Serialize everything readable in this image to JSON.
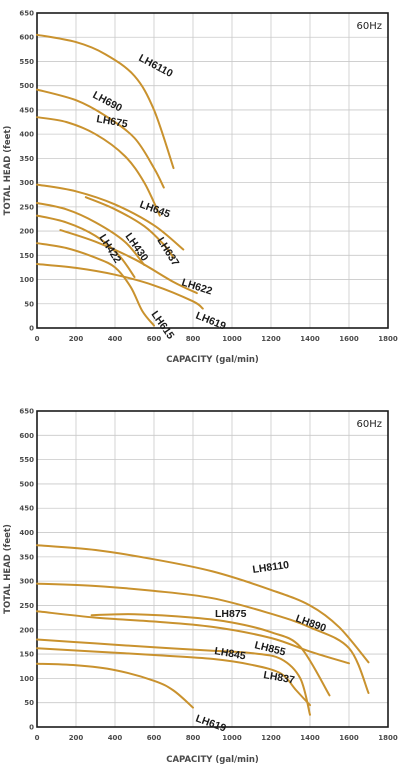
{
  "chart_data": [
    {
      "type": "line",
      "frequency_label": "60Hz",
      "xlabel": "CAPACITY (gal/min)",
      "ylabel": "TOTAL HEAD (feet)",
      "xlim": [
        0,
        1800
      ],
      "ylim": [
        0,
        650
      ],
      "xticks": [
        "0",
        "200",
        "400",
        "600",
        "800",
        "1000",
        "1200",
        "1400",
        "1600",
        "1800"
      ],
      "yticks": [
        "0",
        "50",
        "100",
        "150",
        "200",
        "250",
        "300",
        "350",
        "400",
        "450",
        "500",
        "550",
        "600",
        "650"
      ],
      "grid": true,
      "line_color": "#c9922e",
      "series": [
        {
          "name": "LH6110",
          "points": [
            [
              0,
              605
            ],
            [
              200,
              590
            ],
            [
              350,
              565
            ],
            [
              500,
              520
            ],
            [
              600,
              450
            ],
            [
              700,
              330
            ]
          ]
        },
        {
          "name": "LH690",
          "points": [
            [
              0,
              492
            ],
            [
              200,
              470
            ],
            [
              350,
              438
            ],
            [
              500,
              392
            ],
            [
              600,
              330
            ],
            [
              650,
              290
            ]
          ]
        },
        {
          "name": "LH675",
          "points": [
            [
              0,
              435
            ],
            [
              150,
              425
            ],
            [
              300,
              400
            ],
            [
              450,
              355
            ],
            [
              550,
              300
            ],
            [
              630,
              232
            ]
          ]
        },
        {
          "name": "LH645",
          "points": [
            [
              0,
              296
            ],
            [
              200,
              282
            ],
            [
              400,
              255
            ],
            [
              600,
              212
            ],
            [
              750,
              162
            ]
          ]
        },
        {
          "name": "LH637",
          "points": [
            [
              250,
              270
            ],
            [
              400,
              245
            ],
            [
              550,
              210
            ],
            [
              650,
              172
            ],
            [
              700,
              145
            ]
          ]
        },
        {
          "name": "LH430",
          "points": [
            [
              0,
              258
            ],
            [
              150,
              245
            ],
            [
              300,
              218
            ],
            [
              450,
              178
            ],
            [
              550,
              130
            ]
          ]
        },
        {
          "name": "LH422",
          "points": [
            [
              0,
              232
            ],
            [
              150,
              218
            ],
            [
              300,
              190
            ],
            [
              420,
              150
            ],
            [
              500,
              105
            ]
          ]
        },
        {
          "name": "LH622",
          "points": [
            [
              120,
              202
            ],
            [
              300,
              178
            ],
            [
              500,
              142
            ],
            [
              700,
              95
            ],
            [
              820,
              72
            ]
          ]
        },
        {
          "name": "LH619",
          "points": [
            [
              0,
              132
            ],
            [
              200,
              124
            ],
            [
              400,
              110
            ],
            [
              600,
              88
            ],
            [
              800,
              55
            ],
            [
              850,
              40
            ]
          ]
        },
        {
          "name": "LH615",
          "points": [
            [
              0,
              175
            ],
            [
              150,
              165
            ],
            [
              300,
              145
            ],
            [
              400,
              125
            ],
            [
              480,
              85
            ],
            [
              540,
              35
            ],
            [
              600,
              5
            ]
          ]
        }
      ],
      "labels": [
        "LH6110",
        "LH690",
        "LH675",
        "LH645",
        "LH637",
        "LH430",
        "LH422",
        "LH622",
        "LH619",
        "LH615"
      ]
    },
    {
      "type": "line",
      "frequency_label": "60Hz",
      "xlabel": "CAPACITY (gal/min)",
      "ylabel": "TOTAL HEAD (feet)",
      "xlim": [
        0,
        1800
      ],
      "ylim": [
        0,
        650
      ],
      "xticks": [
        "0",
        "200",
        "400",
        "600",
        "800",
        "1000",
        "1200",
        "1400",
        "1600",
        "1800"
      ],
      "yticks": [
        "0",
        "50",
        "100",
        "150",
        "200",
        "250",
        "300",
        "350",
        "400",
        "450",
        "500",
        "550",
        "600",
        "650"
      ],
      "grid": true,
      "line_color": "#c9922e",
      "series": [
        {
          "name": "LH8110",
          "points": [
            [
              0,
              374
            ],
            [
              300,
              364
            ],
            [
              600,
              345
            ],
            [
              900,
              320
            ],
            [
              1200,
              282
            ],
            [
              1400,
              250
            ],
            [
              1550,
              205
            ],
            [
              1700,
              133
            ]
          ]
        },
        {
          "name": "LH890",
          "points": [
            [
              0,
              295
            ],
            [
              300,
              290
            ],
            [
              600,
              280
            ],
            [
              900,
              265
            ],
            [
              1200,
              233
            ],
            [
              1400,
              205
            ],
            [
              1600,
              162
            ],
            [
              1700,
              70
            ]
          ]
        },
        {
          "name": "LH875",
          "points": [
            [
              0,
              238
            ],
            [
              300,
              225
            ],
            [
              600,
              217
            ],
            [
              900,
              206
            ],
            [
              1200,
              183
            ],
            [
              1400,
              155
            ],
            [
              1600,
              131
            ]
          ]
        },
        {
          "name": "LH855",
          "points": [
            [
              280,
              230
            ],
            [
              500,
              232
            ],
            [
              800,
              225
            ],
            [
              1000,
              215
            ],
            [
              1200,
              195
            ],
            [
              1350,
              165
            ],
            [
              1500,
              65
            ]
          ]
        },
        {
          "name": "LH845",
          "points": [
            [
              0,
              180
            ],
            [
              300,
              172
            ],
            [
              600,
              164
            ],
            [
              900,
              157
            ],
            [
              1100,
              152
            ],
            [
              1250,
              140
            ],
            [
              1350,
              100
            ],
            [
              1400,
              25
            ]
          ]
        },
        {
          "name": "LH837",
          "points": [
            [
              0,
              162
            ],
            [
              300,
              155
            ],
            [
              600,
              148
            ],
            [
              900,
              140
            ],
            [
              1100,
              128
            ],
            [
              1250,
              110
            ],
            [
              1330,
              75
            ],
            [
              1400,
              45
            ]
          ]
        },
        {
          "name": "LH619",
          "points": [
            [
              0,
              130
            ],
            [
              200,
              127
            ],
            [
              400,
              117
            ],
            [
              600,
              95
            ],
            [
              700,
              75
            ],
            [
              800,
              40
            ]
          ]
        }
      ],
      "labels": [
        "LH8110",
        "LH890",
        "LH875",
        "LH855",
        "LH845",
        "LH837",
        "LH619"
      ]
    }
  ]
}
